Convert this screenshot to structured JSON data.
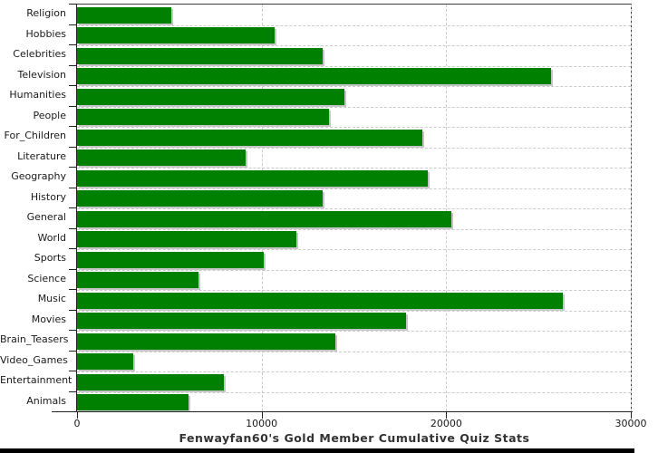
{
  "chart_data": {
    "type": "bar",
    "orientation": "horizontal",
    "title": "Fenwayfan60's Gold Member Cumulative Quiz Stats",
    "categories": [
      "Religion",
      "Hobbies",
      "Celebrities",
      "Television",
      "Humanities",
      "People",
      "For_Children",
      "Literature",
      "Geography",
      "History",
      "General",
      "World",
      "Sports",
      "Science",
      "Music",
      "Movies",
      "Brain_Teasers",
      "Video_Games",
      "Entertainment",
      "Animals"
    ],
    "values": [
      5100,
      10700,
      13300,
      25700,
      14500,
      13650,
      18700,
      9150,
      19000,
      13300,
      20300,
      11900,
      10100,
      6600,
      26300,
      17800,
      14000,
      3050,
      7950,
      6050
    ],
    "xlim": [
      0,
      30000
    ],
    "x_ticks": [
      0,
      10000,
      20000,
      30000
    ],
    "x_tick_labels": [
      "0",
      "10000",
      "20000",
      "30000"
    ],
    "grid": "dashed",
    "legend": "none"
  },
  "colors": {
    "bar": "#008000",
    "bar_shadow": "#c6c6c6",
    "grid": "#cccccc",
    "axis": "#222222",
    "border": "#3c3c3c",
    "label_text": "#1a1a1a",
    "title_text": "#333333",
    "background": "#ffffff",
    "bottom_bar": "#000000"
  }
}
